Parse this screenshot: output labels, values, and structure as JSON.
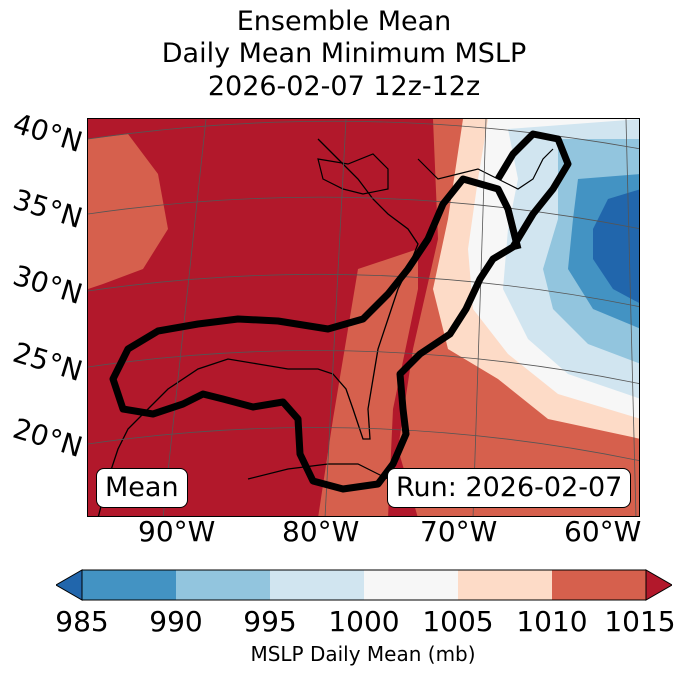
{
  "title": {
    "line1": "Ensemble Mean",
    "line2": "Daily Mean Minimum MSLP",
    "line3": "2026-02-07 12z-12z"
  },
  "map": {
    "lat_labels": [
      "40°N",
      "35°N",
      "30°N",
      "25°N",
      "20°N"
    ],
    "lon_labels": [
      "90°W",
      "80°W",
      "70°W",
      "60°W"
    ],
    "mean_box": "Mean",
    "run_box": "Run: 2026-02-07"
  },
  "colorbar": {
    "ticks": [
      "985",
      "990",
      "995",
      "1000",
      "1005",
      "1010",
      "1015"
    ],
    "label": "MSLP Daily Mean (mb)",
    "colors": [
      "#2166ac",
      "#4393c3",
      "#92c5de",
      "#d1e5f0",
      "#f7f7f7",
      "#fddbc7",
      "#d6604d",
      "#b2182b"
    ]
  }
}
